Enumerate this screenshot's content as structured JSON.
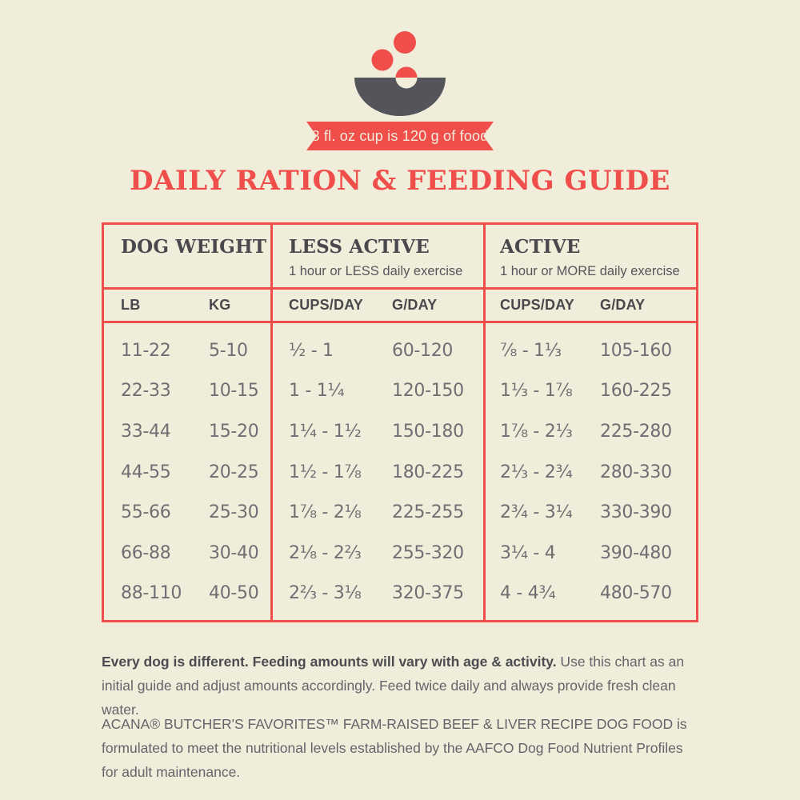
{
  "colors": {
    "background": "#F0EDDB",
    "accent_red": "#EF4E4B",
    "dark_text": "#48484D",
    "data_gray": "#6F6F73",
    "bowl_gray": "#54555A"
  },
  "header": {
    "banner_text": "8 fl. oz cup is 120 g of food",
    "title": "DAILY RATION & FEEDING GUIDE"
  },
  "table": {
    "groups": [
      {
        "title": "DOG WEIGHT",
        "subtitle": ""
      },
      {
        "title": "LESS ACTIVE",
        "subtitle": "1 hour or LESS daily exercise"
      },
      {
        "title": "ACTIVE",
        "subtitle": "1 hour or MORE daily exercise"
      }
    ],
    "columns": [
      "LB",
      "KG",
      "CUPS/DAY",
      "G/DAY",
      "CUPS/DAY",
      "G/DAY"
    ],
    "rows": [
      [
        "11-22",
        "5-10",
        "½ - 1",
        "60-120",
        "⅞ - 1⅓",
        "105-160"
      ],
      [
        "22-33",
        "10-15",
        "1 - 1¼",
        "120-150",
        "1⅓ - 1⅞",
        "160-225"
      ],
      [
        "33-44",
        "15-20",
        "1¼ - 1½",
        "150-180",
        "1⅞ - 2⅓",
        "225-280"
      ],
      [
        "44-55",
        "20-25",
        "1½ - 1⅞",
        "180-225",
        "2⅓ - 2¾",
        "280-330"
      ],
      [
        "55-66",
        "25-30",
        "1⅞ - 2⅛",
        "225-255",
        "2¾ - 3¼",
        "330-390"
      ],
      [
        "66-88",
        "30-40",
        "2⅛ - 2⅔",
        "255-320",
        "3¼ - 4",
        "390-480"
      ],
      [
        "88-110",
        "40-50",
        "2⅔ - 3⅛",
        "320-375",
        "4 - 4¾",
        "480-570"
      ]
    ]
  },
  "notes": [
    {
      "bold": "Every dog is different. Feeding amounts will vary with age & activity.",
      "regular": " Use this chart as an initial guide and adjust amounts accordingly. Feed twice daily and always provide fresh clean water."
    },
    {
      "bold": "",
      "regular": "ACANA® BUTCHER'S FAVORITES™ FARM-RAISED BEEF & LIVER RECIPE DOG FOOD is formulated to meet the nutritional levels established by the AAFCO Dog Food Nutrient Profiles for adult maintenance."
    }
  ],
  "icons": {
    "bowl": "dog-food-bowl-with-kibble-icon"
  }
}
